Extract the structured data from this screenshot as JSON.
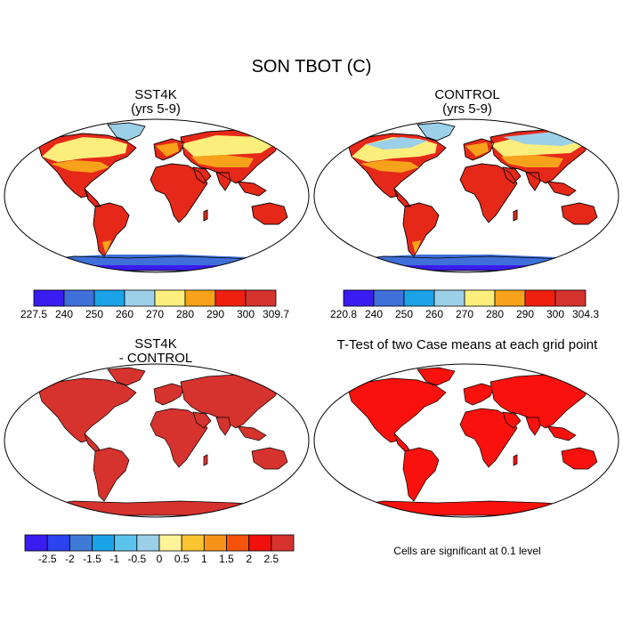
{
  "figure": {
    "title": "SON TBOT (C)",
    "panels": [
      {
        "id": "sst4k",
        "title_line1": "SST4K",
        "title_line2": "(yrs 5-9)"
      },
      {
        "id": "control",
        "title_line1": "CONTROL",
        "title_line2": "(yrs 5-9)"
      },
      {
        "id": "diff",
        "title_line1": "SST4K",
        "title_line2": "- CONTROL"
      },
      {
        "id": "ttest",
        "title_line1": "T-Test of two Case means at each grid point",
        "title_line2": ""
      }
    ],
    "colorbars": [
      {
        "id": "cb1",
        "ticks": [
          "227.5",
          "240",
          "250",
          "260",
          "270",
          "280",
          "290",
          "300",
          "309.7"
        ],
        "colors": [
          "#3a1cf0",
          "#3f6fd8",
          "#1ba3e8",
          "#9ccfe8",
          "#fbee7c",
          "#f7a21a",
          "#f02010",
          "#d6322e"
        ]
      },
      {
        "id": "cb2",
        "ticks": [
          "220.8",
          "240",
          "250",
          "260",
          "270",
          "280",
          "290",
          "300",
          "304.3"
        ],
        "colors": [
          "#3a1cf0",
          "#3f6fd8",
          "#1ba3e8",
          "#9ccfe8",
          "#fbee7c",
          "#f7a21a",
          "#f02010",
          "#d6322e"
        ]
      },
      {
        "id": "cb3",
        "ticks": [
          "-2.5",
          "-2",
          "-1.5",
          "-1",
          "-0.5",
          "0",
          "0.5",
          "1",
          "1.5",
          "2",
          "2.5"
        ],
        "colors": [
          "#3a1cf0",
          "#2b43f0",
          "#3f7ad8",
          "#1ba3e8",
          "#5cc3ec",
          "#9ccfe8",
          "#fff49a",
          "#fbc531",
          "#f7921a",
          "#f5520a",
          "#f0100c",
          "#d6322e"
        ]
      }
    ],
    "note": "Cells are significant at 0.1 level",
    "colors": {
      "land_warm": "#d6322e",
      "land_bright": "#f8110d",
      "hot": "#e62819",
      "orange": "#f7a21a",
      "yellow": "#fbee7c",
      "lightblue": "#9ccfe8",
      "blue": "#3f6fd8",
      "deepblue": "#3a1cf0",
      "ocean": "#ffffff"
    }
  }
}
